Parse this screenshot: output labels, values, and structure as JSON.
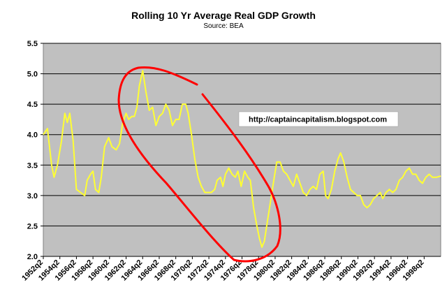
{
  "chart_data": {
    "type": "line",
    "title": "Rolling 10 Yr Average Real GDP Growth",
    "subtitle": "Source:  BEA",
    "xlabel": "",
    "ylabel": "",
    "ylim": [
      2.0,
      5.5
    ],
    "yticks": [
      2.0,
      2.5,
      3.0,
      3.5,
      4.0,
      4.5,
      5.0,
      5.5
    ],
    "ytick_labels": [
      "2.0",
      "2.5",
      "3.0",
      "3.5",
      "4.0",
      "4.5",
      "5.0",
      "5.5"
    ],
    "x_start_year": 1952,
    "x_end_year": 2000,
    "xtick_labels": [
      "1952q2",
      "1954q2",
      "1956q2",
      "1958q2",
      "1960q2",
      "1962q2",
      "1964q2",
      "1966q2",
      "1968q2",
      "1970q2",
      "1972q2",
      "1974q2",
      "1976q2",
      "1978q2",
      "1980q2",
      "1982q2",
      "1984q2",
      "1986q2",
      "1988q2",
      "1990q2",
      "1992q2",
      "1994q2",
      "1996q2",
      "1998q2"
    ],
    "grid": true,
    "legend": "none",
    "annotation": "http://captaincapitalism.blogspot.com",
    "colors": {
      "series": "#ffff33",
      "plot_bg": "#c0c0c0",
      "highlight": "#ff0000",
      "grid": "#000000"
    },
    "series": [
      {
        "name": "Rolling 10 Yr Average Real GDP Growth",
        "points": [
          [
            1952.0,
            4.0
          ],
          [
            1952.5,
            4.1
          ],
          [
            1953.0,
            3.5
          ],
          [
            1953.3,
            3.3
          ],
          [
            1953.7,
            3.5
          ],
          [
            1954.2,
            3.9
          ],
          [
            1954.6,
            4.35
          ],
          [
            1954.9,
            4.2
          ],
          [
            1955.2,
            4.35
          ],
          [
            1955.6,
            3.9
          ],
          [
            1956.0,
            3.1
          ],
          [
            1956.5,
            3.05
          ],
          [
            1957.0,
            3.0
          ],
          [
            1957.3,
            3.25
          ],
          [
            1957.7,
            3.35
          ],
          [
            1958.0,
            3.4
          ],
          [
            1958.3,
            3.1
          ],
          [
            1958.7,
            3.05
          ],
          [
            1959.0,
            3.3
          ],
          [
            1959.4,
            3.8
          ],
          [
            1959.9,
            3.95
          ],
          [
            1960.3,
            3.8
          ],
          [
            1960.8,
            3.75
          ],
          [
            1961.2,
            3.85
          ],
          [
            1961.6,
            4.2
          ],
          [
            1962.0,
            4.35
          ],
          [
            1962.3,
            4.25
          ],
          [
            1962.7,
            4.3
          ],
          [
            1963.0,
            4.3
          ],
          [
            1963.3,
            4.45
          ],
          [
            1963.6,
            4.8
          ],
          [
            1964.0,
            5.05
          ],
          [
            1964.4,
            4.7
          ],
          [
            1964.8,
            4.4
          ],
          [
            1965.2,
            4.45
          ],
          [
            1965.6,
            4.15
          ],
          [
            1966.0,
            4.3
          ],
          [
            1966.4,
            4.35
          ],
          [
            1966.8,
            4.5
          ],
          [
            1967.2,
            4.4
          ],
          [
            1967.6,
            4.15
          ],
          [
            1968.0,
            4.25
          ],
          [
            1968.4,
            4.25
          ],
          [
            1968.8,
            4.5
          ],
          [
            1969.2,
            4.5
          ],
          [
            1969.5,
            4.35
          ],
          [
            1969.9,
            4.0
          ],
          [
            1970.3,
            3.6
          ],
          [
            1970.7,
            3.3
          ],
          [
            1971.1,
            3.15
          ],
          [
            1971.5,
            3.05
          ],
          [
            1971.9,
            3.05
          ],
          [
            1972.3,
            3.05
          ],
          [
            1972.7,
            3.1
          ],
          [
            1973.0,
            3.25
          ],
          [
            1973.4,
            3.3
          ],
          [
            1973.7,
            3.15
          ],
          [
            1974.0,
            3.35
          ],
          [
            1974.4,
            3.45
          ],
          [
            1974.8,
            3.35
          ],
          [
            1975.2,
            3.3
          ],
          [
            1975.5,
            3.4
          ],
          [
            1975.9,
            3.15
          ],
          [
            1976.3,
            3.4
          ],
          [
            1976.7,
            3.3
          ],
          [
            1977.0,
            3.25
          ],
          [
            1977.4,
            2.8
          ],
          [
            1977.8,
            2.5
          ],
          [
            1978.1,
            2.3
          ],
          [
            1978.4,
            2.15
          ],
          [
            1978.7,
            2.25
          ],
          [
            1979.1,
            2.6
          ],
          [
            1979.5,
            2.95
          ],
          [
            1979.9,
            3.3
          ],
          [
            1980.2,
            3.55
          ],
          [
            1980.6,
            3.55
          ],
          [
            1981.0,
            3.4
          ],
          [
            1981.4,
            3.35
          ],
          [
            1981.8,
            3.25
          ],
          [
            1982.2,
            3.15
          ],
          [
            1982.6,
            3.35
          ],
          [
            1983.0,
            3.2
          ],
          [
            1983.4,
            3.05
          ],
          [
            1983.8,
            3.0
          ],
          [
            1984.2,
            3.1
          ],
          [
            1984.6,
            3.15
          ],
          [
            1985.0,
            3.1
          ],
          [
            1985.4,
            3.35
          ],
          [
            1985.8,
            3.4
          ],
          [
            1986.1,
            3.0
          ],
          [
            1986.4,
            2.95
          ],
          [
            1986.8,
            3.1
          ],
          [
            1987.2,
            3.4
          ],
          [
            1987.6,
            3.6
          ],
          [
            1987.9,
            3.7
          ],
          [
            1988.3,
            3.55
          ],
          [
            1988.7,
            3.3
          ],
          [
            1989.1,
            3.1
          ],
          [
            1989.5,
            3.05
          ],
          [
            1989.9,
            3.0
          ],
          [
            1990.3,
            3.0
          ],
          [
            1990.7,
            2.85
          ],
          [
            1991.1,
            2.8
          ],
          [
            1991.5,
            2.85
          ],
          [
            1991.9,
            2.95
          ],
          [
            1992.3,
            3.0
          ],
          [
            1992.7,
            3.05
          ],
          [
            1993.0,
            2.95
          ],
          [
            1993.4,
            3.05
          ],
          [
            1993.8,
            3.1
          ],
          [
            1994.2,
            3.05
          ],
          [
            1994.6,
            3.1
          ],
          [
            1995.0,
            3.25
          ],
          [
            1995.4,
            3.3
          ],
          [
            1995.8,
            3.4
          ],
          [
            1996.2,
            3.45
          ],
          [
            1996.6,
            3.35
          ],
          [
            1997.0,
            3.35
          ],
          [
            1997.4,
            3.25
          ],
          [
            1997.8,
            3.2
          ],
          [
            1998.2,
            3.3
          ],
          [
            1998.6,
            3.35
          ],
          [
            1999.0,
            3.3
          ],
          [
            1999.5,
            3.3
          ],
          [
            2000.0,
            3.32
          ]
        ]
      }
    ]
  }
}
